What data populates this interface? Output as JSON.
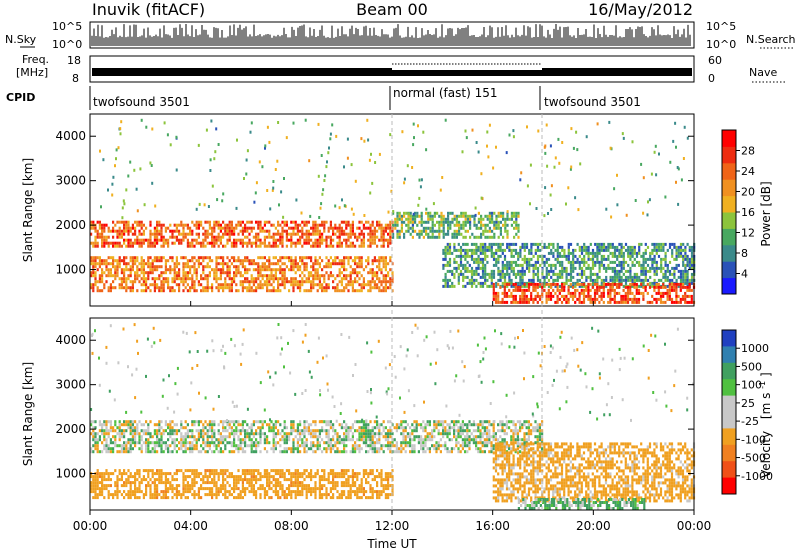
{
  "header": {
    "station": "Inuvik (fitACF)",
    "beam": "Beam 00",
    "date": "16/May/2012"
  },
  "noise_panel": {
    "left_label": "N.Sky",
    "right_label": "N.Search",
    "left_ticks": [
      "10^5",
      "10^0"
    ],
    "right_ticks": [
      "10^5",
      "10^0"
    ]
  },
  "freq_panel": {
    "left_label_line1": "Freq.",
    "left_label_line2": "[MHz]",
    "right_label": "Nave",
    "left_ticks": [
      "18",
      "8"
    ],
    "right_ticks": [
      "60",
      "0"
    ]
  },
  "cpid": {
    "label": "CPID",
    "segments": [
      {
        "start_hour": 0,
        "label": "twofsound 3501"
      },
      {
        "start_hour": 12,
        "label": "normal (fast) 151"
      },
      {
        "start_hour": 18,
        "label": "twofsound 3501"
      }
    ]
  },
  "time_axis": {
    "xlabel": "Time UT",
    "ticks": [
      "00:00",
      "04:00",
      "08:00",
      "12:00",
      "16:00",
      "20:00",
      "00:00"
    ]
  },
  "chart_data": [
    {
      "type": "heatmap",
      "name": "power",
      "xlabel": "Time UT",
      "ylabel": "Slant Range [km]",
      "x_range_hours": [
        0,
        24
      ],
      "ylim": [
        180,
        4500
      ],
      "y_ticks": [
        1000,
        2000,
        3000,
        4000
      ],
      "colorbar": {
        "label": "Power [dB]",
        "ticks": [
          "4",
          "8",
          "12",
          "16",
          "20",
          "24",
          "28"
        ],
        "colors": [
          "#1a1aff",
          "#2a52b8",
          "#3a8a8a",
          "#48a860",
          "#8cc43c",
          "#f0b020",
          "#f09020",
          "#f06418",
          "#ee2c10",
          "#ff0000"
        ]
      },
      "regions": [
        {
          "t0": 0,
          "t1": 12,
          "r0": 1500,
          "r1": 2100,
          "value": 24
        },
        {
          "t0": 0,
          "t1": 12,
          "r0": 550,
          "r1": 1300,
          "value": 22
        },
        {
          "t0": 12,
          "t1": 17,
          "r0": 1700,
          "r1": 2300,
          "value": 12
        },
        {
          "t0": 14,
          "t1": 24,
          "r0": 600,
          "r1": 1600,
          "value": 10
        },
        {
          "t0": 16,
          "t1": 24,
          "r0": 250,
          "r1": 700,
          "value": 26
        }
      ]
    },
    {
      "type": "heatmap",
      "name": "velocity",
      "xlabel": "Time UT",
      "ylabel": "Slant Range [km]",
      "x_range_hours": [
        0,
        24
      ],
      "ylim": [
        180,
        4500
      ],
      "y_ticks": [
        1000,
        2000,
        3000,
        4000
      ],
      "colorbar": {
        "label": "Velocity",
        "label_units": "[m s",
        "label_exp": "-1",
        "ticks": [
          "1000",
          "500",
          "100",
          "25",
          "-25",
          "-100",
          "-500",
          "-1000"
        ],
        "colors": [
          "#2040c0",
          "#3080b0",
          "#40a060",
          "#50c040",
          "#c8c8c8",
          "#c8c8c8",
          "#f0a020",
          "#f08020",
          "#f05018",
          "#ff0000"
        ]
      },
      "regions": [
        {
          "t0": 0,
          "t1": 18,
          "r0": 1500,
          "r1": 2200,
          "value": 0
        },
        {
          "t0": 0,
          "t1": 12,
          "r0": 450,
          "r1": 1100,
          "value": -200
        },
        {
          "t0": 16,
          "t1": 24,
          "r0": 400,
          "r1": 1700,
          "value": -150
        },
        {
          "t0": 17,
          "t1": 22,
          "r0": 200,
          "r1": 450,
          "value": 80
        }
      ]
    }
  ]
}
